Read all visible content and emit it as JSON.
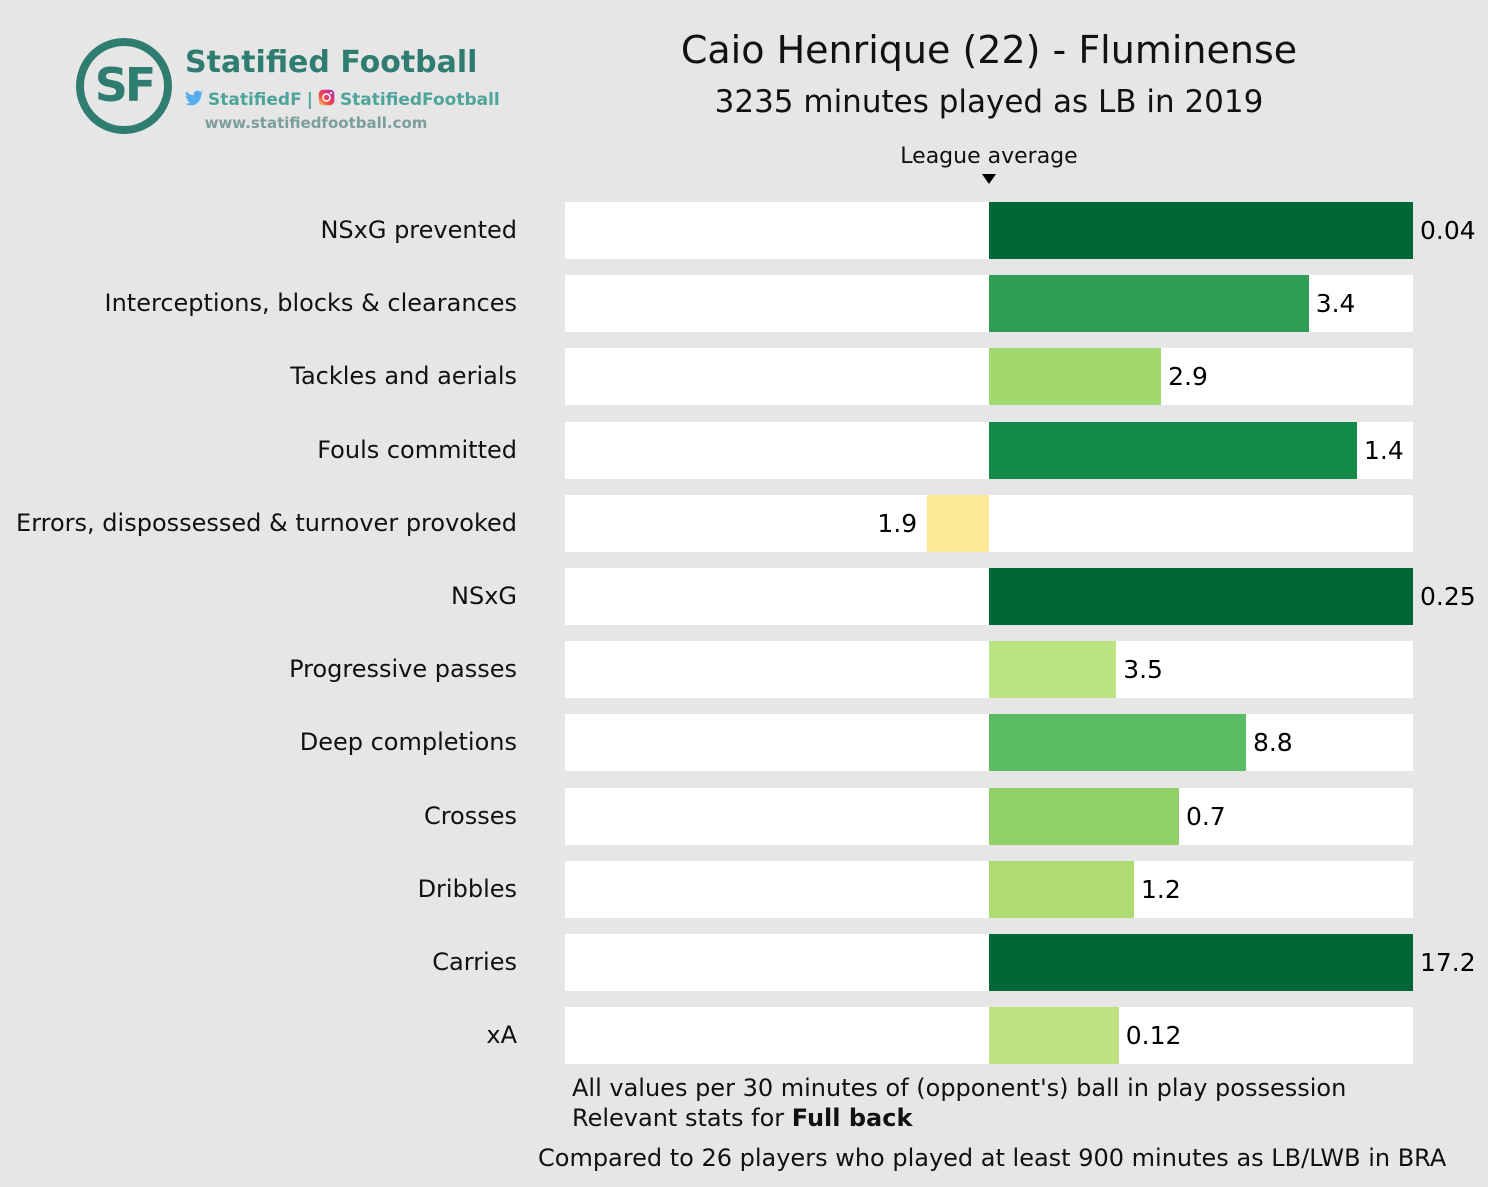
{
  "brand": {
    "initials": "SF",
    "name": "Statified Football",
    "twitter_handle": "StatifiedF",
    "separator": "|",
    "instagram_handle": "StatifiedFootball",
    "website": "www.statifiedfootball.com",
    "brand_color": "#2e7d70",
    "social_text_color": "#4da49a",
    "url_text_color": "#7b9f9b",
    "twitter_blue": "#55acee"
  },
  "header": {
    "title": "Caio Henrique (22) - Fluminense",
    "subtitle": "3235 minutes played as LB in 2019"
  },
  "chart_data": {
    "type": "bar",
    "orientation": "horizontal",
    "title": "Caio Henrique (22) - Fluminense",
    "subtitle": "3235 minutes played as LB in 2019",
    "league_average_label": "League average",
    "league_average_fraction_of_track": 0.5,
    "track_color": "#ffffff",
    "background_color": "#e7e6e6",
    "marker_color": "#000000",
    "categories": [
      "NSxG prevented",
      "Interceptions, blocks & clearances",
      "Tackles and aerials",
      "Fouls committed",
      "Errors, dispossessed & turnover provoked",
      "NSxG",
      "Progressive passes",
      "Deep completions",
      "Crosses",
      "Dribbles",
      "Carries",
      "xA"
    ],
    "values": [
      0.04,
      3.4,
      2.9,
      1.4,
      1.9,
      0.25,
      3.5,
      8.8,
      0.7,
      1.2,
      17.2,
      0.12
    ],
    "rows": [
      {
        "label": "NSxG prevented",
        "value": 0.04,
        "display": "0.04",
        "direction": "right",
        "bar_pct": 50,
        "color": "#006837"
      },
      {
        "label": "Interceptions, blocks & clearances",
        "value": 3.4,
        "display": "3.4",
        "direction": "right",
        "bar_pct": 37.7,
        "color": "#2f9e54"
      },
      {
        "label": "Tackles and aerials",
        "value": 2.9,
        "display": "2.9",
        "direction": "right",
        "bar_pct": 20.3,
        "color": "#a2d96e"
      },
      {
        "label": "Fouls committed",
        "value": 1.4,
        "display": "1.4",
        "direction": "right",
        "bar_pct": 43.4,
        "color": "#148a4a"
      },
      {
        "label": "Errors, dispossessed & turnover provoked",
        "value": 1.9,
        "display": "1.9",
        "direction": "left",
        "bar_pct": 7.3,
        "color": "#fce897"
      },
      {
        "label": "NSxG",
        "value": 0.25,
        "display": "0.25",
        "direction": "right",
        "bar_pct": 50,
        "color": "#006837"
      },
      {
        "label": "Progressive passes",
        "value": 3.5,
        "display": "3.5",
        "direction": "right",
        "bar_pct": 15.0,
        "color": "#bce383"
      },
      {
        "label": "Deep completions",
        "value": 8.8,
        "display": "8.8",
        "direction": "right",
        "bar_pct": 30.3,
        "color": "#5bbc63"
      },
      {
        "label": "Crosses",
        "value": 0.7,
        "display": "0.7",
        "direction": "right",
        "bar_pct": 22.4,
        "color": "#92d169"
      },
      {
        "label": "Dribbles",
        "value": 1.2,
        "display": "1.2",
        "direction": "right",
        "bar_pct": 17.1,
        "color": "#aedc73"
      },
      {
        "label": "Carries",
        "value": 17.2,
        "display": "17.2",
        "direction": "right",
        "bar_pct": 50,
        "color": "#006837"
      },
      {
        "label": "xA",
        "value": 0.12,
        "display": "0.12",
        "direction": "right",
        "bar_pct": 15.3,
        "color": "#bee283"
      }
    ]
  },
  "footer": {
    "note_line1": "All values per 30 minutes of (opponent's) ball in play possession",
    "note_line2_prefix": "Relevant stats for ",
    "note_line2_bold": "Full back",
    "comparison": "Compared to 26 players who played at least 900 minutes as LB/LWB in BRA"
  }
}
